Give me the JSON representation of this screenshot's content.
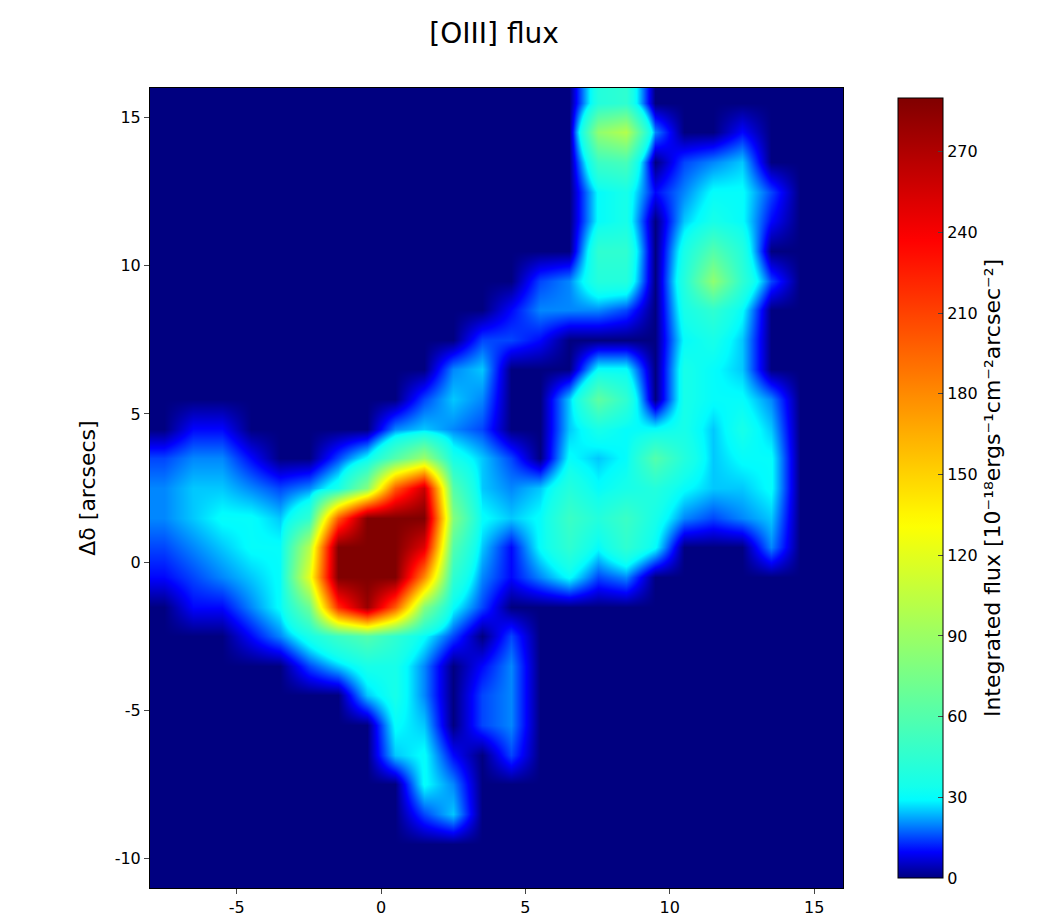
{
  "chart_data": {
    "type": "heatmap",
    "title": "[OIII] flux",
    "y_label": "Δδ [arcsecs]",
    "colorbar_label": "Integrated flux [10⁻¹⁸ergs⁻¹cm⁻²arcsec⁻²]",
    "xlim": [
      -8,
      16
    ],
    "ylim": [
      -11,
      16
    ],
    "xticks": [
      -5,
      0,
      5,
      10,
      15
    ],
    "yticks": [
      -10,
      -5,
      0,
      5,
      10,
      15
    ],
    "zlim": [
      0,
      290
    ],
    "zticks": [
      0,
      30,
      60,
      90,
      120,
      150,
      180,
      210,
      240,
      270
    ],
    "x": [
      -7.5,
      -6.5,
      -5.5,
      -4.5,
      -3.5,
      -2.5,
      -1.5,
      -0.5,
      0.5,
      1.5,
      2.5,
      3.5,
      4.5,
      5.5,
      6.5,
      7.5,
      8.5,
      9.5,
      10.5,
      11.5,
      12.5,
      13.5,
      14.5,
      15.5
    ],
    "y": [
      -10.5,
      -9.5,
      -8.5,
      -7.5,
      -6.5,
      -5.5,
      -4.5,
      -3.5,
      -2.5,
      -1.5,
      -0.5,
      0.5,
      1.5,
      2.5,
      3.5,
      4.5,
      5.5,
      6.5,
      7.5,
      8.5,
      9.5,
      10.5,
      11.5,
      12.5,
      13.5,
      14.5,
      15.5
    ],
    "z": [
      [
        0,
        0,
        0,
        0,
        0,
        0,
        0,
        0,
        0,
        0,
        0,
        0,
        0,
        0,
        0,
        0,
        0,
        0,
        0,
        0,
        0,
        0,
        0,
        0
      ],
      [
        0,
        0,
        0,
        0,
        0,
        0,
        0,
        0,
        0,
        0,
        0,
        0,
        0,
        0,
        0,
        0,
        0,
        0,
        0,
        0,
        0,
        0,
        0,
        0
      ],
      [
        0,
        0,
        0,
        0,
        0,
        0,
        0,
        0,
        0,
        15,
        25,
        0,
        0,
        0,
        0,
        0,
        0,
        0,
        0,
        0,
        0,
        0,
        0,
        0
      ],
      [
        0,
        0,
        0,
        0,
        0,
        0,
        0,
        0,
        0,
        30,
        20,
        0,
        0,
        0,
        0,
        0,
        0,
        0,
        0,
        0,
        0,
        0,
        0,
        0
      ],
      [
        0,
        0,
        0,
        0,
        0,
        0,
        0,
        0,
        25,
        30,
        10,
        0,
        15,
        0,
        0,
        0,
        0,
        0,
        0,
        0,
        0,
        0,
        0,
        0
      ],
      [
        0,
        0,
        0,
        0,
        0,
        0,
        0,
        0,
        30,
        25,
        0,
        15,
        20,
        0,
        0,
        0,
        0,
        0,
        0,
        0,
        0,
        0,
        0,
        0
      ],
      [
        0,
        0,
        0,
        0,
        0,
        0,
        0,
        25,
        35,
        20,
        0,
        15,
        20,
        0,
        0,
        0,
        0,
        0,
        0,
        0,
        0,
        0,
        0,
        0
      ],
      [
        0,
        0,
        0,
        0,
        0,
        15,
        25,
        35,
        35,
        20,
        0,
        10,
        20,
        0,
        0,
        0,
        0,
        0,
        0,
        0,
        0,
        0,
        0,
        0
      ],
      [
        0,
        0,
        0,
        10,
        20,
        35,
        50,
        60,
        45,
        30,
        15,
        0,
        15,
        0,
        0,
        0,
        0,
        0,
        0,
        0,
        0,
        0,
        0,
        0
      ],
      [
        0,
        10,
        10,
        20,
        30,
        70,
        220,
        280,
        200,
        80,
        30,
        15,
        0,
        0,
        0,
        0,
        0,
        0,
        0,
        0,
        0,
        0,
        0,
        0
      ],
      [
        10,
        15,
        20,
        25,
        30,
        120,
        290,
        290,
        290,
        180,
        45,
        20,
        10,
        20,
        30,
        15,
        20,
        0,
        0,
        0,
        0,
        0,
        0,
        0
      ],
      [
        15,
        20,
        25,
        30,
        30,
        100,
        290,
        290,
        290,
        250,
        60,
        25,
        10,
        30,
        45,
        30,
        45,
        30,
        0,
        0,
        0,
        20,
        0,
        0
      ],
      [
        20,
        25,
        30,
        30,
        25,
        45,
        200,
        290,
        290,
        290,
        80,
        30,
        25,
        30,
        50,
        40,
        50,
        35,
        20,
        15,
        20,
        25,
        0,
        0
      ],
      [
        20,
        25,
        25,
        20,
        15,
        20,
        35,
        80,
        200,
        260,
        60,
        25,
        20,
        25,
        40,
        30,
        35,
        40,
        30,
        25,
        25,
        30,
        0,
        0
      ],
      [
        15,
        20,
        20,
        10,
        0,
        0,
        15,
        30,
        60,
        90,
        35,
        25,
        15,
        0,
        30,
        25,
        30,
        60,
        40,
        25,
        30,
        30,
        0,
        0
      ],
      [
        0,
        10,
        10,
        0,
        0,
        0,
        0,
        0,
        20,
        25,
        20,
        15,
        0,
        0,
        25,
        35,
        30,
        30,
        35,
        25,
        35,
        25,
        0,
        0
      ],
      [
        0,
        0,
        0,
        0,
        0,
        0,
        0,
        0,
        0,
        15,
        25,
        20,
        0,
        0,
        25,
        65,
        45,
        0,
        35,
        30,
        30,
        20,
        0,
        0
      ],
      [
        0,
        0,
        0,
        0,
        0,
        0,
        0,
        0,
        0,
        0,
        20,
        25,
        0,
        0,
        0,
        30,
        30,
        0,
        35,
        30,
        25,
        0,
        0,
        0
      ],
      [
        0,
        0,
        0,
        0,
        0,
        0,
        0,
        0,
        0,
        0,
        0,
        15,
        15,
        10,
        0,
        0,
        0,
        0,
        30,
        35,
        25,
        0,
        0,
        0
      ],
      [
        0,
        0,
        0,
        0,
        0,
        0,
        0,
        0,
        0,
        0,
        0,
        0,
        10,
        20,
        20,
        20,
        15,
        0,
        35,
        45,
        30,
        0,
        0,
        0
      ],
      [
        0,
        0,
        0,
        0,
        0,
        0,
        0,
        0,
        0,
        0,
        0,
        0,
        0,
        15,
        20,
        40,
        40,
        0,
        40,
        85,
        45,
        15,
        0,
        0
      ],
      [
        0,
        0,
        0,
        0,
        0,
        0,
        0,
        0,
        0,
        0,
        0,
        0,
        0,
        0,
        0,
        45,
        45,
        0,
        35,
        60,
        40,
        0,
        0,
        0
      ],
      [
        0,
        0,
        0,
        0,
        0,
        0,
        0,
        0,
        0,
        0,
        0,
        0,
        0,
        0,
        0,
        30,
        35,
        0,
        25,
        35,
        30,
        10,
        0,
        0
      ],
      [
        0,
        0,
        0,
        0,
        0,
        0,
        0,
        0,
        0,
        0,
        0,
        0,
        0,
        0,
        0,
        30,
        35,
        10,
        20,
        30,
        30,
        15,
        0,
        0
      ],
      [
        0,
        0,
        0,
        0,
        0,
        0,
        0,
        0,
        0,
        0,
        0,
        0,
        0,
        0,
        0,
        50,
        55,
        0,
        15,
        20,
        25,
        0,
        0,
        0
      ],
      [
        0,
        0,
        0,
        0,
        0,
        0,
        0,
        0,
        0,
        0,
        0,
        0,
        0,
        0,
        0,
        85,
        100,
        20,
        0,
        0,
        10,
        0,
        0,
        0
      ],
      [
        0,
        0,
        0,
        0,
        0,
        0,
        0,
        0,
        0,
        0,
        0,
        0,
        0,
        0,
        0,
        40,
        45,
        0,
        0,
        0,
        0,
        0,
        0,
        0
      ]
    ]
  }
}
